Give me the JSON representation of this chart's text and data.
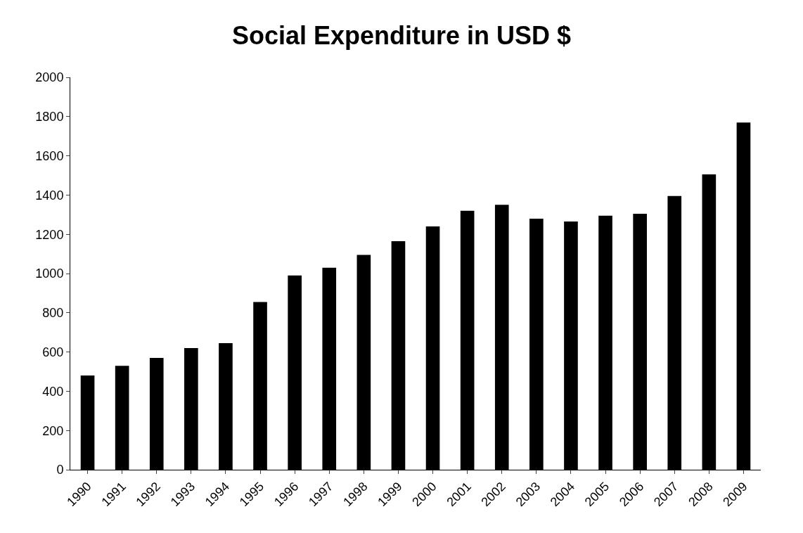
{
  "chart_data": {
    "type": "bar",
    "title": "Social Expenditure in USD $",
    "categories": [
      "1990",
      "1991",
      "1992",
      "1993",
      "1994",
      "1995",
      "1996",
      "1997",
      "1998",
      "1999",
      "2000",
      "2001",
      "2002",
      "2003",
      "2004",
      "2005",
      "2006",
      "2007",
      "2008",
      "2009"
    ],
    "values": [
      480,
      530,
      570,
      620,
      645,
      855,
      990,
      1030,
      1095,
      1165,
      1240,
      1320,
      1350,
      1280,
      1265,
      1295,
      1305,
      1395,
      1505,
      1770
    ],
    "color": "#000000",
    "ylim": [
      0,
      2000
    ],
    "yticks": [
      0,
      200,
      400,
      600,
      800,
      1000,
      1200,
      1400,
      1600,
      1800,
      2000
    ]
  }
}
